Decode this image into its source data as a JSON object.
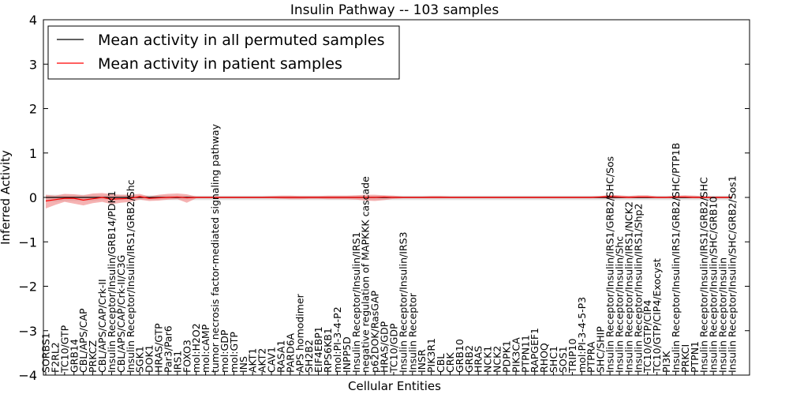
{
  "chart_data": {
    "type": "line",
    "title": "Insulin Pathway -- 103 samples",
    "xlabel": "Cellular Entities",
    "ylabel": "Inferred Activity",
    "ylim": [
      -4,
      4
    ],
    "yticks": [
      -4,
      -3,
      -2,
      -1,
      0,
      1,
      2,
      3,
      4
    ],
    "ytick_labels": [
      "−4",
      "−3",
      "−2",
      "−1",
      "0",
      "1",
      "2",
      "3",
      "4"
    ],
    "grid": false,
    "legend_position": "top-left",
    "colors": {
      "permuted": "#000000",
      "patient": "#ff0000",
      "patient_band": "#f08080",
      "permuted_band": "#c8c8c8"
    },
    "categories": [
      "SORBS1",
      "F2RL2",
      "TC10/GTP",
      "GRB14",
      "CBL/APS/CAP",
      "PRKCZ",
      "CBL/APS/CAP/Crk-II",
      "Insulin Receptor/Insulin/GRB14/PDK1",
      "CBL/APS/CAP/Crk-II/C3G",
      "Insulin Receptor/Insulin/IRS1/GRB2/Shc",
      "SGK1",
      "DOK1",
      "HRAS/GTP",
      "Par3/Par6",
      "IRS1",
      "FOXO3",
      "mol:H2O2",
      "mol:cAMP",
      "tumor necrosis factor-mediated signaling pathway",
      "mol:GDP",
      "mol:GTP",
      "INS",
      "AKT1",
      "AKT2",
      "CAV1",
      "RASA1",
      "PARD6A",
      "APS homodimer",
      "SH2B2",
      "EIF4EBP1",
      "RPS6KB1",
      "mol:PI-3-4-P2",
      "INPP5D",
      "Insulin Receptor/Insulin/IRS1",
      "negative regulation of MAPKKK cascade",
      "p62DOK/RasGAP",
      "HRAS/GDP",
      "TC10/GDP",
      "Insulin Receptor/Insulin/IRS3",
      "Insulin Receptor",
      "INSR",
      "PIK3R1",
      "CBL",
      "CRK",
      "GRB10",
      "GRB2",
      "HRAS",
      "NCK1",
      "NCK2",
      "PDPK1",
      "PIK3CA",
      "PTPN11",
      "RAPGEF1",
      "RHOQ",
      "SHC1",
      "SOS1",
      "TRIP10",
      "mol:PI-3-4-5-P3",
      "PTPRA",
      "SHC/SHIP",
      "Insulin Receptor/Insulin/IRS1/GRB2/SHC/Sos",
      "Insulin Receptor/Insulin/Shc",
      "Insulin Receptor/Insulin/IRS1/NCK2",
      "Insulin Receptor/Insulin/IRS1/Shp2",
      "TC10/GTP/CIP4",
      "TC10/GTP/CIP4/Exocyst",
      "PI3K",
      "Insulin Receptor/Insulin/IRS1/GRB2/SHC/PTP1B",
      "PRKCI",
      "PTPN1",
      "Insulin Receptor/Insulin/IRS1/GRB2/SHC",
      "Insulin Receptor/Insulin/SHC/GRB10",
      "Insulin Receptor/Insulin",
      "Insulin Receptor/Insulin/SHC/GRB2/Sos1"
    ],
    "series": [
      {
        "name": "Mean activity in all permuted samples",
        "color": "#000000",
        "values": [
          0.0,
          0.0,
          0.0,
          0.0,
          0.0,
          0.0,
          0.0,
          0.0,
          0.0,
          0.0,
          0.0,
          0.0,
          0.0,
          0.0,
          0.0,
          0.0,
          0.0,
          0.0,
          0.0,
          0.0,
          0.0,
          0.0,
          0.0,
          0.0,
          0.0,
          0.0,
          0.0,
          0.0,
          0.0,
          0.0,
          0.0,
          0.0,
          0.0,
          0.0,
          0.0,
          0.0,
          0.0,
          0.0,
          0.0,
          0.0,
          0.0,
          0.0,
          0.0,
          0.0,
          0.0,
          0.0,
          0.0,
          0.0,
          0.0,
          0.0,
          0.0,
          0.0,
          0.0,
          0.0,
          0.0,
          0.0,
          0.0,
          0.0,
          0.0,
          0.0,
          0.0,
          0.0,
          0.0,
          0.0,
          0.0,
          0.0,
          0.0,
          0.0,
          0.0,
          0.0,
          0.0,
          0.0,
          0.0,
          0.0
        ],
        "band_upper": [
          0.06,
          0.06,
          0.06,
          0.06,
          0.06,
          0.06,
          0.06,
          0.06,
          0.06,
          0.06,
          0.05,
          0.05,
          0.05,
          0.05,
          0.05,
          0.04,
          0.04,
          0.04,
          0.04,
          0.04,
          0.04,
          0.04,
          0.04,
          0.04,
          0.04,
          0.04,
          0.04,
          0.04,
          0.04,
          0.04,
          0.04,
          0.04,
          0.04,
          0.04,
          0.04,
          0.04,
          0.04,
          0.04,
          0.04,
          0.04,
          0.04,
          0.04,
          0.04,
          0.04,
          0.04,
          0.04,
          0.04,
          0.04,
          0.04,
          0.04,
          0.04,
          0.04,
          0.04,
          0.04,
          0.04,
          0.04,
          0.04,
          0.04,
          0.04,
          0.04,
          0.04,
          0.04,
          0.04,
          0.04,
          0.04,
          0.04,
          0.04,
          0.04,
          0.04,
          0.04,
          0.04,
          0.04,
          0.04,
          0.04
        ],
        "band_lower": [
          -0.1,
          -0.1,
          -0.08,
          -0.08,
          -0.08,
          -0.08,
          -0.06,
          -0.06,
          -0.06,
          -0.06,
          -0.06,
          -0.06,
          -0.06,
          -0.06,
          -0.06,
          -0.06,
          -0.06,
          -0.06,
          -0.06,
          -0.06,
          -0.06,
          -0.06,
          -0.06,
          -0.06,
          -0.06,
          -0.06,
          -0.06,
          -0.06,
          -0.06,
          -0.06,
          -0.06,
          -0.06,
          -0.06,
          -0.06,
          -0.06,
          -0.06,
          -0.06,
          -0.06,
          -0.06,
          -0.06,
          -0.06,
          -0.06,
          -0.06,
          -0.06,
          -0.06,
          -0.06,
          -0.06,
          -0.06,
          -0.06,
          -0.06,
          -0.06,
          -0.06,
          -0.06,
          -0.06,
          -0.06,
          -0.06,
          -0.06,
          -0.06,
          -0.06,
          -0.06,
          -0.06,
          -0.06,
          -0.06,
          -0.06,
          -0.06,
          -0.06,
          -0.06,
          -0.06,
          -0.06,
          -0.06,
          -0.06,
          -0.06,
          -0.06,
          -0.06
        ]
      },
      {
        "name": "Mean activity in patient samples",
        "color": "#ff0000",
        "values": [
          -0.08,
          -0.05,
          -0.02,
          -0.02,
          -0.06,
          -0.03,
          0.0,
          -0.04,
          -0.03,
          -0.02,
          0.02,
          -0.02,
          -0.01,
          0.0,
          0.01,
          -0.01,
          0.0,
          0.0,
          0.0,
          0.0,
          0.0,
          0.0,
          0.0,
          0.0,
          0.0,
          0.0,
          0.0,
          0.0,
          0.0,
          0.0,
          0.0,
          0.0,
          0.0,
          0.0,
          0.0,
          0.0,
          0.01,
          0.0,
          0.0,
          0.0,
          0.0,
          0.0,
          0.0,
          0.0,
          0.0,
          0.0,
          0.0,
          0.0,
          0.0,
          0.0,
          0.0,
          0.0,
          0.0,
          0.0,
          0.0,
          0.0,
          0.0,
          0.0,
          0.0,
          0.01,
          0.02,
          0.01,
          0.0,
          0.01,
          0.01,
          0.0,
          0.0,
          0.01,
          0.01,
          0.0,
          0.0,
          0.0,
          0.0,
          0.0
        ],
        "band_upper": [
          0.06,
          0.04,
          0.08,
          0.07,
          0.05,
          0.09,
          0.1,
          0.07,
          0.06,
          0.06,
          0.08,
          0.02,
          0.06,
          0.08,
          0.09,
          0.07,
          0.02,
          0.02,
          0.02,
          0.02,
          0.02,
          0.02,
          0.02,
          0.02,
          0.03,
          0.04,
          0.04,
          0.03,
          0.03,
          0.03,
          0.04,
          0.04,
          0.04,
          0.05,
          0.06,
          0.06,
          0.05,
          0.04,
          0.02,
          0.02,
          0.02,
          0.03,
          0.03,
          0.02,
          0.02,
          0.02,
          0.02,
          0.02,
          0.02,
          0.02,
          0.02,
          0.02,
          0.02,
          0.02,
          0.02,
          0.02,
          0.02,
          0.02,
          0.02,
          0.03,
          0.06,
          0.05,
          0.03,
          0.05,
          0.05,
          0.02,
          0.02,
          0.04,
          0.05,
          0.04,
          0.02,
          0.02,
          0.02,
          0.02
        ],
        "band_lower": [
          -0.25,
          -0.17,
          -0.1,
          -0.14,
          -0.18,
          -0.13,
          -0.1,
          -0.15,
          -0.12,
          -0.1,
          -0.05,
          -0.08,
          -0.07,
          -0.05,
          -0.04,
          -0.12,
          -0.02,
          -0.02,
          -0.02,
          -0.02,
          -0.02,
          -0.02,
          -0.02,
          -0.02,
          -0.02,
          -0.03,
          -0.04,
          -0.04,
          -0.03,
          -0.03,
          -0.04,
          -0.04,
          -0.04,
          -0.05,
          -0.07,
          -0.08,
          -0.06,
          -0.03,
          -0.02,
          -0.02,
          -0.02,
          -0.02,
          -0.02,
          -0.02,
          -0.02,
          -0.02,
          -0.02,
          -0.02,
          -0.02,
          -0.02,
          -0.02,
          -0.02,
          -0.02,
          -0.02,
          -0.02,
          -0.02,
          -0.02,
          -0.02,
          -0.02,
          -0.02,
          -0.03,
          -0.02,
          -0.02,
          -0.02,
          -0.02,
          -0.02,
          -0.02,
          -0.02,
          -0.02,
          -0.02,
          -0.02,
          -0.02,
          -0.02,
          -0.02
        ]
      }
    ]
  }
}
